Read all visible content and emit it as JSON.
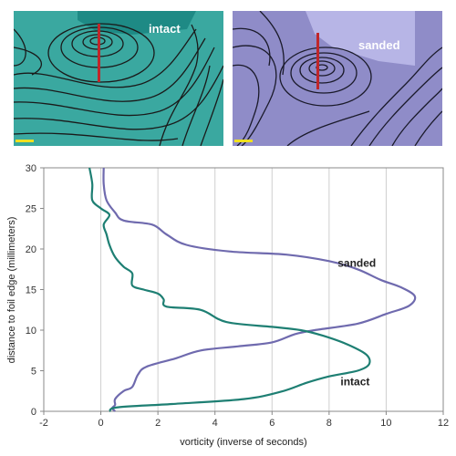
{
  "panels": {
    "intact": {
      "label": "intact",
      "background": "#3aa8a0",
      "accent": "#1e8a85",
      "line": "#1a1a1a",
      "marker": "#c0262a"
    },
    "sanded": {
      "label": "sanded",
      "background": "#8f8cc8",
      "accent": "#b7b5e6",
      "line": "#1a1a2a",
      "marker": "#c0262a"
    }
  },
  "chart_data": {
    "type": "line",
    "xlabel": "vorticity (inverse of seconds)",
    "ylabel": "distance to foil edge (millimeters)",
    "xlim": [
      -2,
      12
    ],
    "ylim": [
      0,
      30
    ],
    "x_ticks": [
      -2,
      0,
      2,
      4,
      6,
      8,
      10,
      12
    ],
    "y_ticks": [
      0,
      5,
      10,
      15,
      20,
      25,
      30
    ],
    "grid": "vertical",
    "series": [
      {
        "name": "sanded",
        "color": "#6f6aae",
        "points": [
          [
            0.1,
            30
          ],
          [
            0.1,
            28
          ],
          [
            0.2,
            26
          ],
          [
            0.5,
            24.5
          ],
          [
            0.8,
            23.5
          ],
          [
            1.8,
            23
          ],
          [
            2.3,
            21.8
          ],
          [
            3,
            20.5
          ],
          [
            4.5,
            19.7
          ],
          [
            6.5,
            19.3
          ],
          [
            8,
            18.5
          ],
          [
            9,
            17.5
          ],
          [
            9.8,
            16.2
          ],
          [
            10.5,
            15.3
          ],
          [
            11,
            14.2
          ],
          [
            10.8,
            13
          ],
          [
            10,
            12
          ],
          [
            9,
            10.8
          ],
          [
            7.5,
            10
          ],
          [
            6.8,
            9.5
          ],
          [
            6,
            8.5
          ],
          [
            4.8,
            8
          ],
          [
            3.5,
            7.5
          ],
          [
            2.6,
            6.5
          ],
          [
            1.6,
            5.5
          ],
          [
            1.3,
            4.5
          ],
          [
            1.1,
            3
          ],
          [
            0.8,
            2.5
          ],
          [
            0.5,
            1.5
          ],
          [
            0.5,
            0.8
          ],
          [
            0.4,
            0.4
          ],
          [
            0.5,
            0
          ]
        ]
      },
      {
        "name": "intact",
        "color": "#1e7f73",
        "points": [
          [
            -0.4,
            30
          ],
          [
            -0.3,
            28
          ],
          [
            -0.3,
            26
          ],
          [
            0,
            25
          ],
          [
            0.3,
            24.2
          ],
          [
            0.1,
            23
          ],
          [
            0.2,
            21.8
          ],
          [
            0.3,
            20.5
          ],
          [
            0.5,
            19
          ],
          [
            0.8,
            17.8
          ],
          [
            1.1,
            17
          ],
          [
            1.1,
            15.5
          ],
          [
            1.5,
            15
          ],
          [
            2,
            14.5
          ],
          [
            2.2,
            13.8
          ],
          [
            2.3,
            12.9
          ],
          [
            3.5,
            12.5
          ],
          [
            4.4,
            11
          ],
          [
            6,
            10.4
          ],
          [
            7,
            10
          ],
          [
            7.8,
            9.3
          ],
          [
            8.6,
            8.3
          ],
          [
            9.3,
            7
          ],
          [
            9.4,
            5.8
          ],
          [
            9,
            5
          ],
          [
            8,
            4.3
          ],
          [
            7.2,
            3.5
          ],
          [
            6.3,
            2.4
          ],
          [
            5,
            1.5
          ],
          [
            2.5,
            0.9
          ],
          [
            0.6,
            0.5
          ],
          [
            0.3,
            0
          ]
        ]
      }
    ],
    "annotations": [
      {
        "text": "sanded",
        "x": 8.3,
        "y": 17.8
      },
      {
        "text": "intact",
        "x": 8.4,
        "y": 3.2
      }
    ]
  }
}
